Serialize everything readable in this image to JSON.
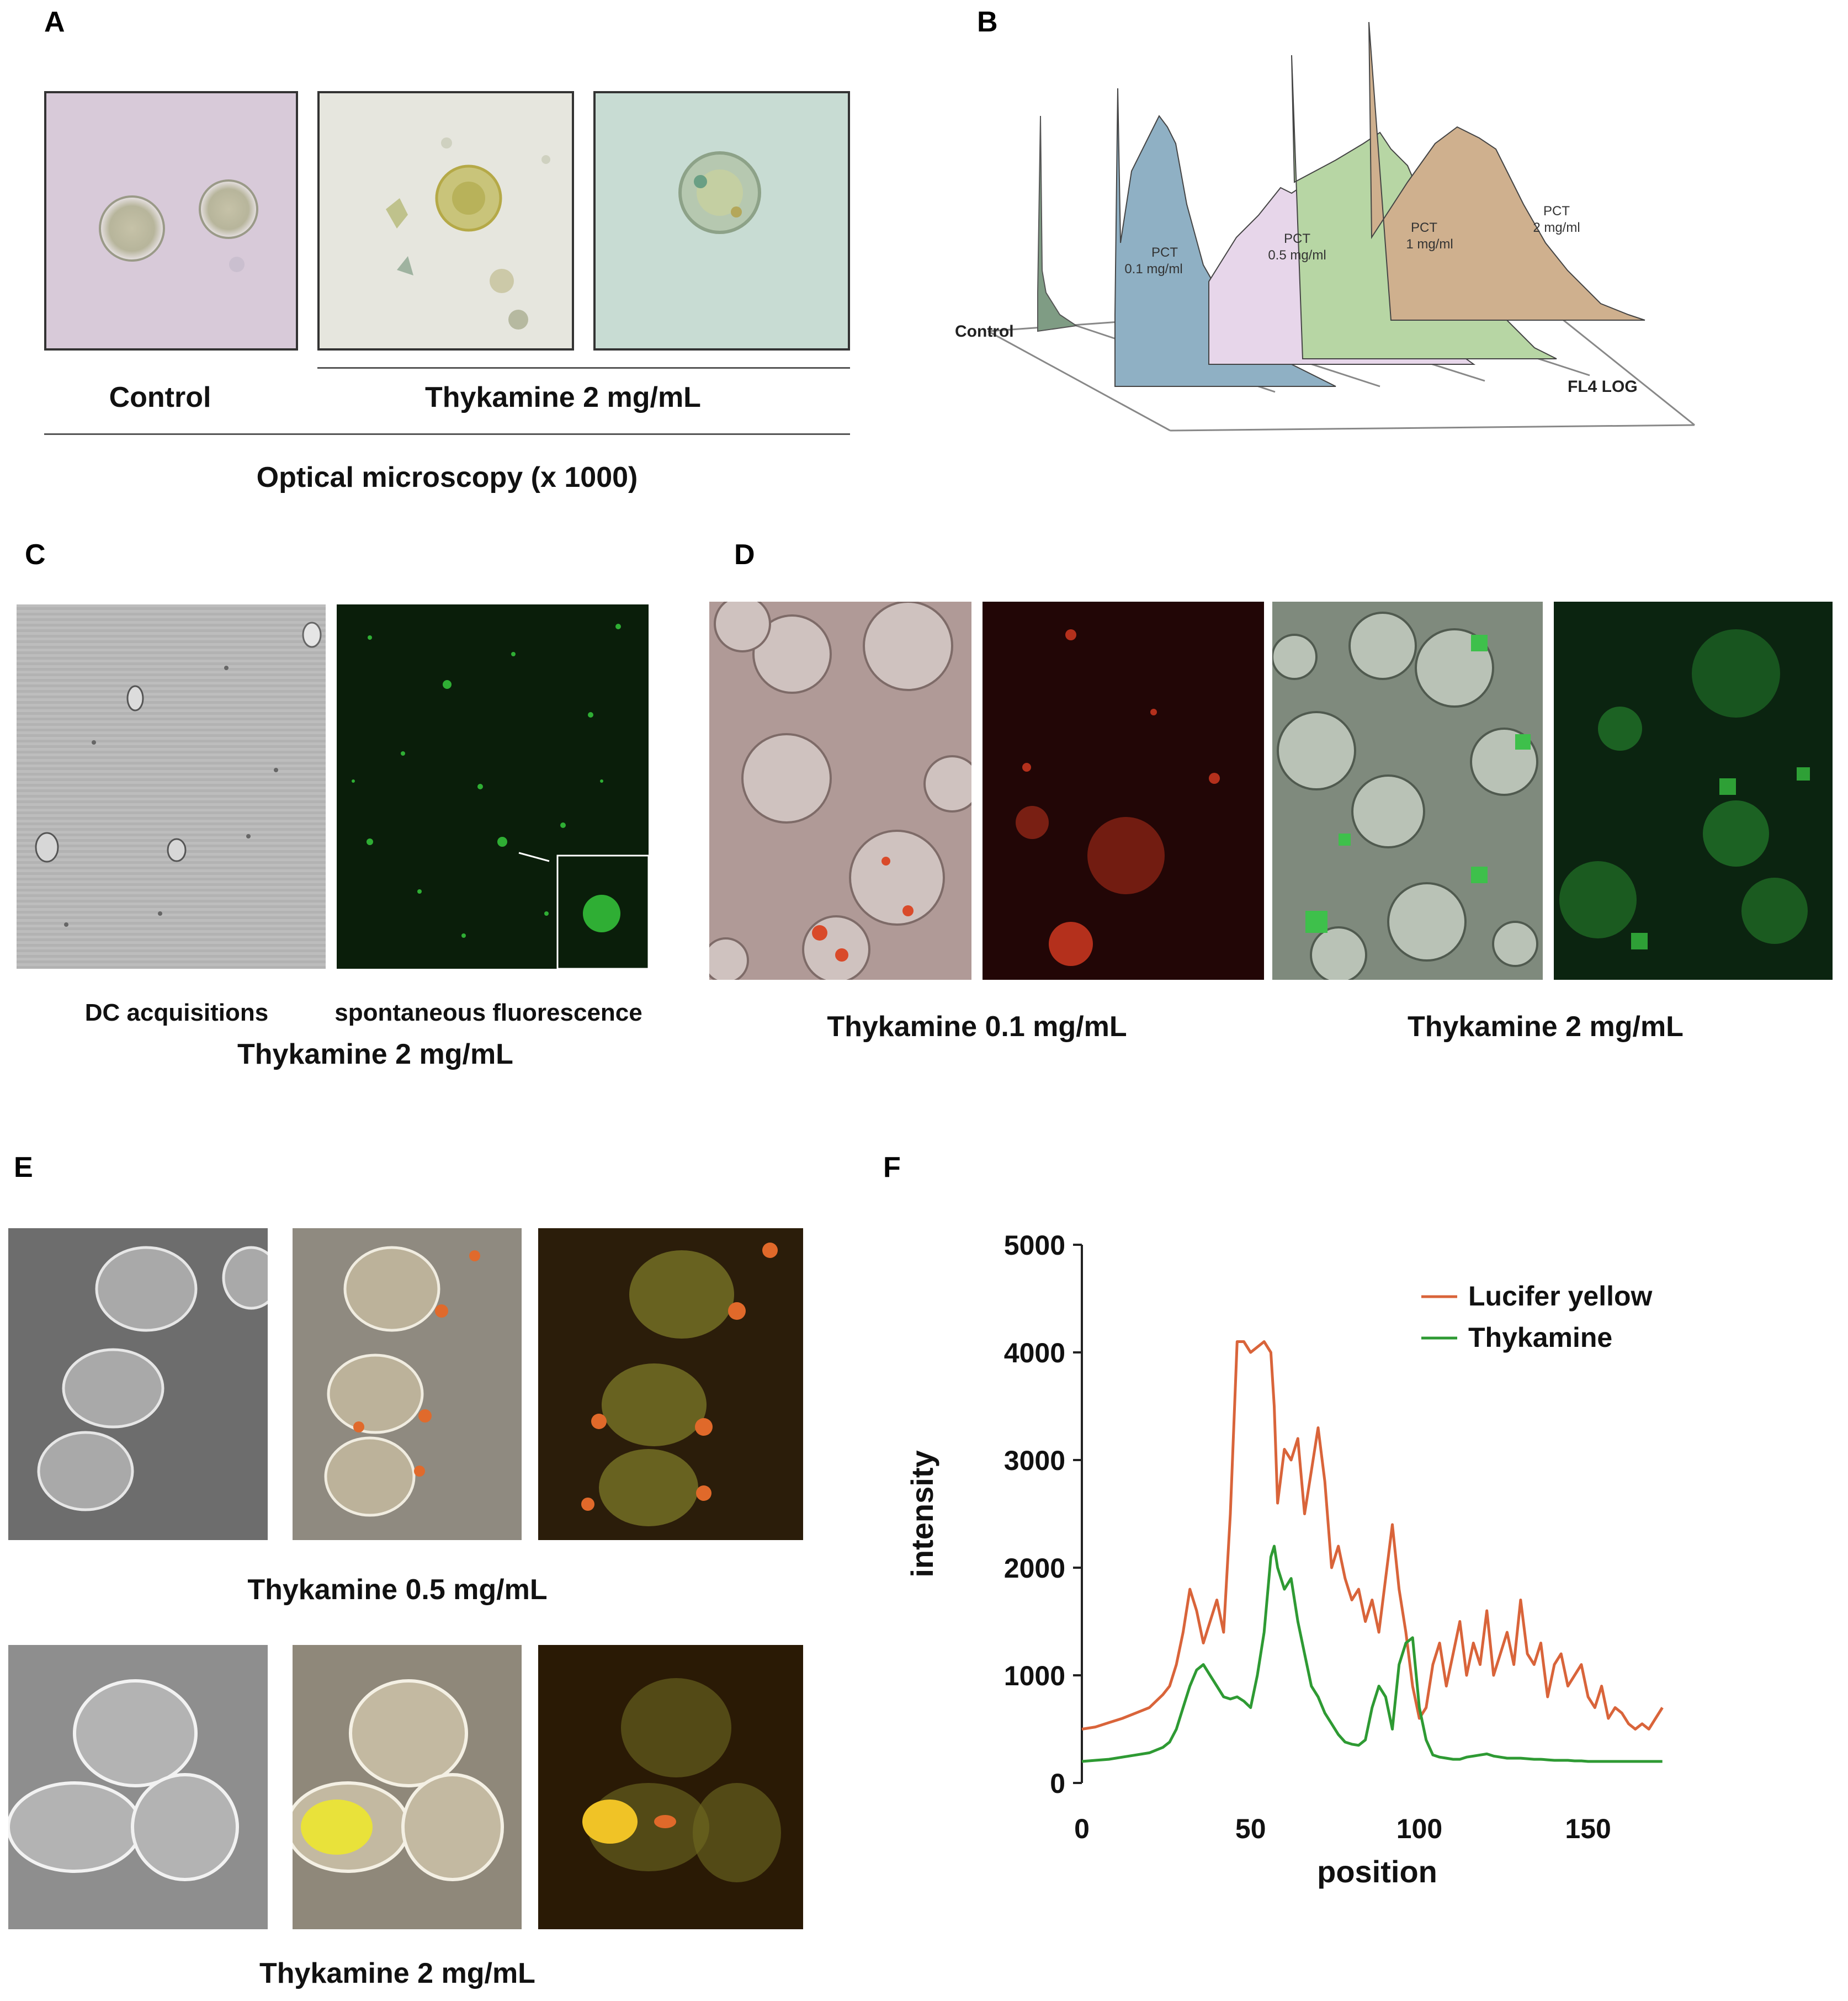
{
  "panels": {
    "A": {
      "label": "A",
      "control_caption": "Control",
      "treated_caption": "Thykamine 2 mg/mL",
      "footer_caption": "Optical microscopy (x 1000)"
    },
    "B": {
      "label": "B",
      "control_label": "Control",
      "axis_label": "FL4 LOG",
      "histograms": [
        {
          "name": "PCT",
          "dose": "0.1 mg/ml",
          "color": "#8fb0c4"
        },
        {
          "name": "PCT",
          "dose": "0.5 mg/ml",
          "color": "#e7d6ea"
        },
        {
          "name": "PCT",
          "dose": "1 mg/ml",
          "color": "#b7d6a4"
        },
        {
          "name": "PCT",
          "dose": "2 mg/ml",
          "color": "#cfb08e"
        }
      ]
    },
    "C": {
      "label": "C",
      "left_caption": "DC acquisitions",
      "right_caption": "spontaneous fluorescence",
      "bottom_caption": "Thykamine 2 mg/mL"
    },
    "D": {
      "label": "D",
      "left_caption": "Thykamine 0.1 mg/mL",
      "right_caption": "Thykamine 2 mg/mL"
    },
    "E": {
      "label": "E",
      "top_caption": "Thykamine 0.5 mg/mL",
      "bottom_caption": "Thykamine 2 mg/mL"
    },
    "F": {
      "label": "F"
    }
  },
  "chart_data": {
    "type": "line",
    "title": "",
    "xlabel": "position",
    "ylabel": "intensity",
    "xlim": [
      0,
      175
    ],
    "ylim": [
      0,
      5000
    ],
    "x_ticks": [
      "0",
      "50",
      "100",
      "150"
    ],
    "y_ticks": [
      "0",
      "1000",
      "2000",
      "3000",
      "4000",
      "5000"
    ],
    "legend_position": "top-right",
    "series": [
      {
        "name": "Lucifer yellow",
        "color": "#d9643a",
        "x": [
          0,
          4,
          8,
          12,
          16,
          20,
          24,
          26,
          28,
          30,
          32,
          34,
          36,
          38,
          40,
          42,
          44,
          46,
          48,
          50,
          52,
          54,
          56,
          57,
          58,
          60,
          62,
          64,
          66,
          68,
          70,
          72,
          74,
          76,
          78,
          80,
          82,
          84,
          86,
          88,
          90,
          92,
          94,
          96,
          98,
          100,
          102,
          104,
          106,
          108,
          110,
          112,
          114,
          116,
          118,
          120,
          122,
          124,
          126,
          128,
          130,
          132,
          134,
          136,
          138,
          140,
          142,
          144,
          146,
          148,
          150,
          152,
          154,
          156,
          158,
          160,
          162,
          164,
          166,
          168,
          170,
          172
        ],
        "y": [
          500,
          520,
          560,
          600,
          650,
          700,
          820,
          900,
          1100,
          1400,
          1800,
          1600,
          1300,
          1500,
          1700,
          1400,
          2500,
          4100,
          4100,
          4000,
          4050,
          4100,
          4000,
          3500,
          2600,
          3100,
          3000,
          3200,
          2500,
          2900,
          3300,
          2800,
          2000,
          2200,
          1900,
          1700,
          1800,
          1500,
          1700,
          1400,
          1900,
          2400,
          1800,
          1400,
          900,
          600,
          700,
          1100,
          1300,
          900,
          1200,
          1500,
          1000,
          1300,
          1100,
          1600,
          1000,
          1200,
          1400,
          1100,
          1700,
          1200,
          1100,
          1300,
          800,
          1100,
          1200,
          900,
          1000,
          1100,
          800,
          700,
          900,
          600,
          700,
          650,
          550,
          500,
          550,
          500,
          600,
          700
        ]
      },
      {
        "name": "Thykamine",
        "color": "#2e9a33",
        "x": [
          0,
          4,
          8,
          12,
          16,
          20,
          24,
          26,
          28,
          30,
          32,
          34,
          36,
          38,
          40,
          42,
          44,
          46,
          48,
          50,
          52,
          54,
          56,
          57,
          58,
          60,
          62,
          64,
          66,
          68,
          70,
          72,
          74,
          76,
          78,
          80,
          82,
          84,
          86,
          88,
          90,
          92,
          94,
          96,
          98,
          100,
          102,
          104,
          106,
          108,
          110,
          112,
          114,
          116,
          118,
          120,
          122,
          124,
          126,
          128,
          130,
          132,
          134,
          136,
          138,
          140,
          142,
          144,
          146,
          148,
          150,
          152,
          154,
          156,
          158,
          160,
          162,
          164,
          166,
          168,
          170,
          172
        ],
        "y": [
          200,
          210,
          220,
          240,
          260,
          280,
          330,
          380,
          500,
          700,
          900,
          1050,
          1100,
          1000,
          900,
          800,
          780,
          800,
          760,
          700,
          1000,
          1400,
          2100,
          2200,
          2000,
          1800,
          1900,
          1500,
          1200,
          900,
          800,
          650,
          550,
          450,
          380,
          360,
          350,
          400,
          700,
          900,
          800,
          500,
          1100,
          1300,
          1350,
          700,
          400,
          260,
          240,
          230,
          220,
          220,
          240,
          250,
          260,
          270,
          250,
          240,
          230,
          230,
          230,
          225,
          220,
          220,
          215,
          210,
          210,
          210,
          205,
          205,
          200,
          200,
          200,
          200,
          200,
          200,
          200,
          200,
          200,
          200,
          200,
          200
        ]
      }
    ]
  }
}
